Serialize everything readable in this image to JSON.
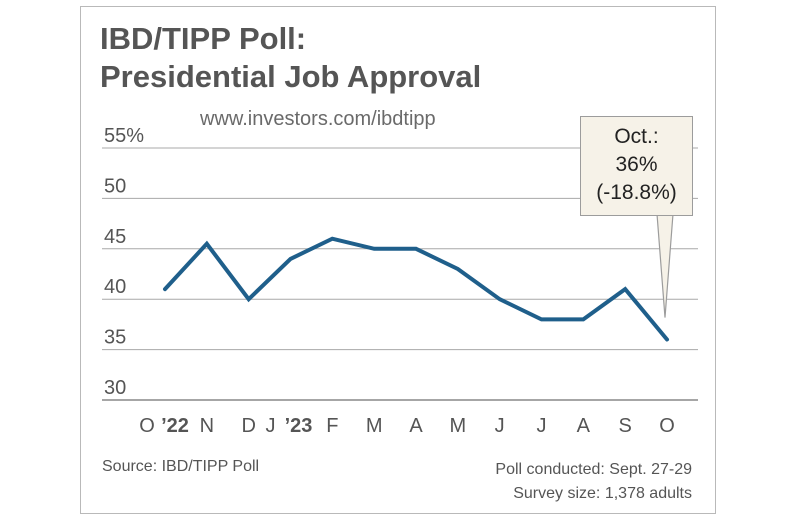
{
  "chart_data": {
    "type": "line",
    "title_lines": [
      "IBD/TIPP Poll:",
      "Presidential Job Approval"
    ],
    "subtitle": "www.investors.com/ibdtipp",
    "categories": [
      "O ’22",
      "N",
      "D",
      "J ’23",
      "F",
      "M",
      "A",
      "M",
      "J",
      "J",
      "A",
      "S",
      "O"
    ],
    "x_tick_labels": [
      "O",
      "’22",
      "N",
      "D",
      "J",
      "’23",
      "F",
      "M",
      "A",
      "M",
      "J",
      "J",
      "A",
      "S",
      "O"
    ],
    "series": [
      {
        "values": [
          41,
          45.5,
          40,
          44,
          46,
          45,
          45,
          43,
          40,
          38,
          38,
          41,
          36
        ]
      }
    ],
    "y_ticks": [
      "55%",
      "50",
      "45",
      "40",
      "35",
      "30"
    ],
    "y_tick_values": [
      55,
      50,
      45,
      40,
      35,
      30
    ],
    "ylim": [
      30,
      55
    ],
    "grid": true,
    "line_color": "#1f5f8b",
    "annotation": {
      "lines": [
        "Oct.:",
        "36%",
        "(-18.8%)"
      ],
      "target_category_index": 12
    },
    "source": "Source: IBD/TIPP Poll",
    "notes": [
      "Poll conducted: Sept. 27-29",
      "Survey size: 1,378 adults"
    ]
  }
}
